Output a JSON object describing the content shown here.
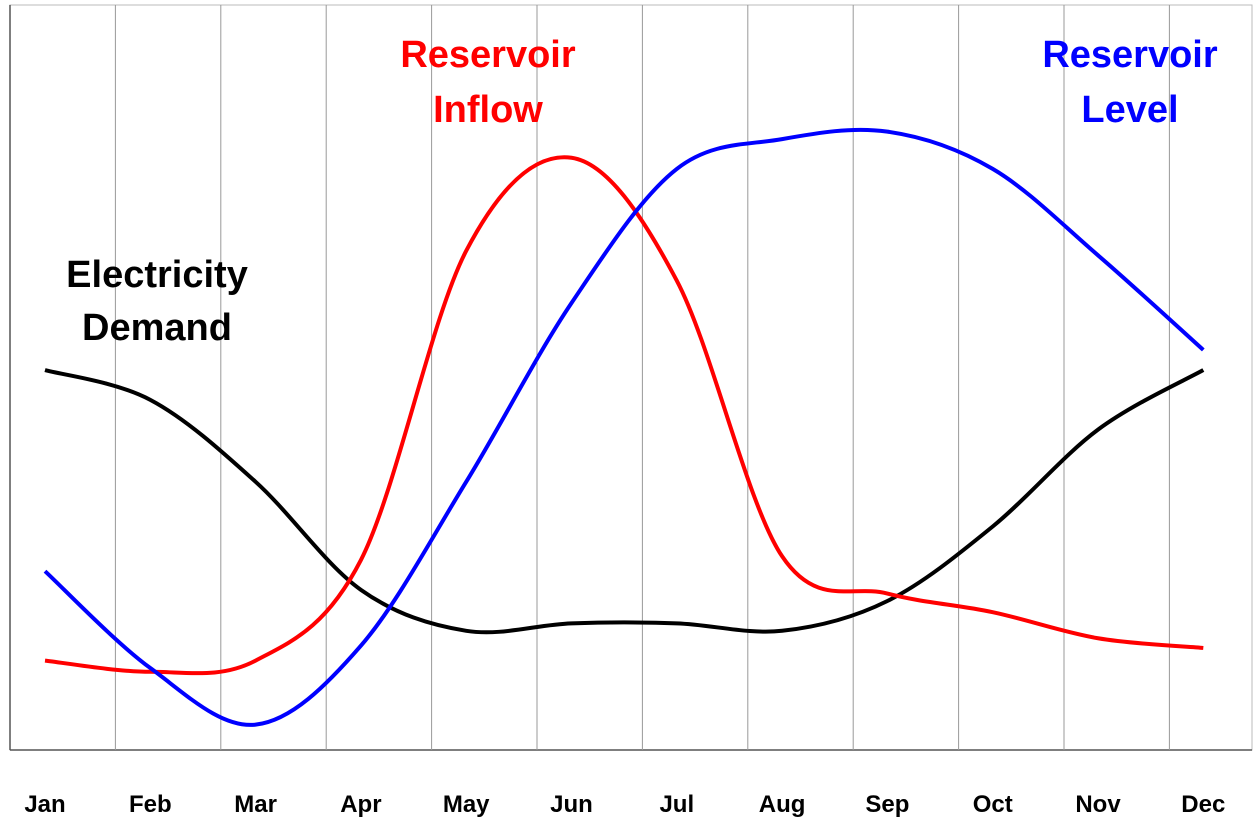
{
  "chart_data": {
    "type": "line",
    "categories": [
      "Jan",
      "Feb",
      "Mar",
      "Apr",
      "May",
      "Jun",
      "Jul",
      "Aug",
      "Sep",
      "Oct",
      "Nov",
      "Dec"
    ],
    "series": [
      {
        "label_lines": [
          "Electricity",
          "Demand"
        ],
        "color": "#000000",
        "values": [
          51,
          47,
          36,
          21.5,
          16,
          17,
          17,
          16,
          20,
          30,
          43,
          51
        ]
      },
      {
        "label_lines": [
          "Reservoir",
          "Inflow"
        ],
        "color": "#ff0000",
        "values": [
          12,
          10.5,
          12,
          25.5,
          67,
          79.5,
          63,
          26,
          21,
          18.5,
          15,
          13.7
        ]
      },
      {
        "label_lines": [
          "Reservoir",
          "Level"
        ],
        "color": "#0000ff",
        "values": [
          24,
          11,
          3.4,
          14,
          36,
          60,
          78,
          82,
          83,
          78,
          66.4,
          53.7
        ]
      }
    ],
    "ylim": [
      0,
      100
    ],
    "grid": true
  }
}
